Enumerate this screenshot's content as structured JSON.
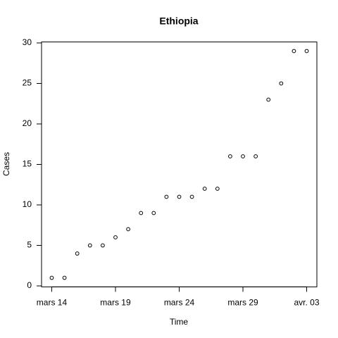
{
  "chart_data": {
    "type": "scatter",
    "title": "Ethiopia",
    "x_label": "Time",
    "y_label": "Cases",
    "categories": [
      "mars 14",
      null,
      null,
      null,
      null,
      "mars 19",
      null,
      null,
      null,
      null,
      "mars 24",
      null,
      null,
      null,
      null,
      "mars 29",
      null,
      null,
      null,
      null,
      "avr. 03"
    ],
    "values": [
      1,
      1,
      4,
      5,
      5,
      6,
      7,
      9,
      9,
      11,
      11,
      11,
      12,
      12,
      16,
      16,
      16,
      23,
      25,
      29,
      29
    ],
    "color": "#000000",
    "ylim": [
      -0.12,
      30.12
    ],
    "yticks": [
      0,
      5,
      10,
      15,
      20,
      25,
      30
    ],
    "grid": false
  }
}
